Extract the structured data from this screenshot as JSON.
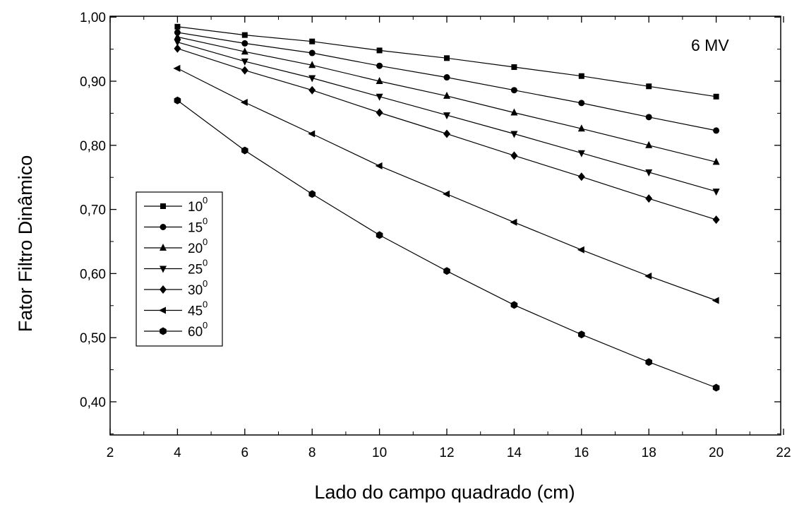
{
  "chart_data": {
    "type": "line",
    "title": "",
    "xlabel": "Lado do campo quadrado (cm)",
    "ylabel": "Fator Filtro Dinâmico",
    "annotation": "6 MV",
    "xlim": [
      2,
      22
    ],
    "ylim": [
      0.35,
      1.0
    ],
    "x_ticks": [
      2,
      4,
      6,
      8,
      10,
      12,
      14,
      16,
      18,
      20,
      22
    ],
    "x_tick_labels": [
      "2",
      "4",
      "6",
      "8",
      "10",
      "12",
      "14",
      "16",
      "18",
      "20",
      "22"
    ],
    "y_ticks": [
      0.4,
      0.5,
      0.6,
      0.7,
      0.8,
      0.9,
      1.0
    ],
    "y_tick_labels": [
      "0,40",
      "0,50",
      "0,60",
      "0,70",
      "0,80",
      "0,90",
      "1,00"
    ],
    "grid": false,
    "legend_position": "center-left",
    "x": [
      4,
      6,
      8,
      10,
      12,
      14,
      16,
      18,
      20
    ],
    "series": [
      {
        "name": "10",
        "name_sup": "0",
        "marker": "square",
        "values": [
          0.985,
          0.972,
          0.962,
          0.948,
          0.936,
          0.922,
          0.908,
          0.892,
          0.876
        ]
      },
      {
        "name": "15",
        "name_sup": "0",
        "marker": "circle",
        "values": [
          0.976,
          0.959,
          0.944,
          0.924,
          0.906,
          0.886,
          0.866,
          0.844,
          0.823
        ]
      },
      {
        "name": "20",
        "name_sup": "0",
        "marker": "triangle-up",
        "values": [
          0.969,
          0.946,
          0.925,
          0.9,
          0.877,
          0.851,
          0.826,
          0.8,
          0.774
        ]
      },
      {
        "name": "25",
        "name_sup": "0",
        "marker": "triangle-down",
        "values": [
          0.961,
          0.931,
          0.905,
          0.876,
          0.847,
          0.818,
          0.788,
          0.758,
          0.728
        ]
      },
      {
        "name": "30",
        "name_sup": "0",
        "marker": "diamond",
        "values": [
          0.951,
          0.917,
          0.886,
          0.851,
          0.818,
          0.784,
          0.751,
          0.717,
          0.684
        ]
      },
      {
        "name": "45",
        "name_sup": "0",
        "marker": "triangle-left",
        "values": [
          0.92,
          0.867,
          0.818,
          0.768,
          0.724,
          0.68,
          0.637,
          0.596,
          0.558
        ]
      },
      {
        "name": "60",
        "name_sup": "0",
        "marker": "hexagon",
        "values": [
          0.87,
          0.792,
          0.724,
          0.66,
          0.604,
          0.551,
          0.505,
          0.462,
          0.422
        ]
      }
    ]
  }
}
